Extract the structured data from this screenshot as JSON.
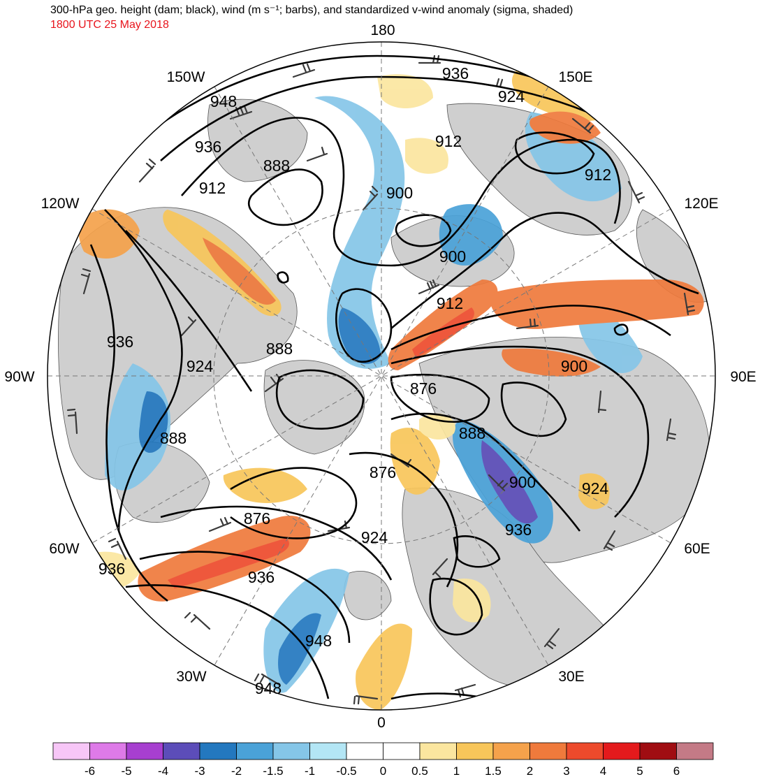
{
  "header": {
    "title": "300-hPa geo. height (dam; black), wind (m s⁻¹; barbs), and standardized v-wind anomaly (sigma, shaded)",
    "subtitle": "1800 UTC 25 May 2018"
  },
  "map": {
    "projection": "north polar stereographic",
    "longitude_labels": {
      "deg180": "180",
      "e150": "150E",
      "e120": "120E",
      "e90": "90E",
      "e60": "60E",
      "e30": "30E",
      "deg0": "0",
      "w30": "30W",
      "w60": "60W",
      "w90": "90W",
      "w120": "120W",
      "w150": "150W"
    },
    "height_labels": {
      "h1": "936",
      "h2": "948",
      "h3": "924",
      "h4": "936",
      "h5": "912",
      "h6": "888",
      "h7": "912",
      "h8": "900",
      "h9": "912",
      "h10": "900",
      "h11": "912",
      "h12": "936",
      "h13": "888",
      "h14": "924",
      "h15": "900",
      "h16": "876",
      "h17": "888",
      "h18": "888",
      "h19": "876",
      "h20": "900",
      "h21": "924",
      "h22": "876",
      "h23": "924",
      "h24": "936",
      "h25": "936",
      "h26": "936",
      "h27": "948"
    }
  },
  "colorbar": {
    "ticks": [
      "-6",
      "-5",
      "-4",
      "-3",
      "-2",
      "-1.5",
      "-1",
      "-0.5",
      "0",
      "0.5",
      "1",
      "1.5",
      "2",
      "3",
      "4",
      "5",
      "6"
    ],
    "colors": [
      "#f7c6f7",
      "#de7ae8",
      "#a73fd0",
      "#5c4db9",
      "#2378bf",
      "#4aa2d8",
      "#85c6e8",
      "#b3e6f5",
      "#ffffff",
      "#ffffff",
      "#fbe69f",
      "#f8c65a",
      "#f5a24b",
      "#ef7a3c",
      "#ed4a2c",
      "#e41a1c",
      "#a00d12",
      "#c47a86"
    ]
  }
}
